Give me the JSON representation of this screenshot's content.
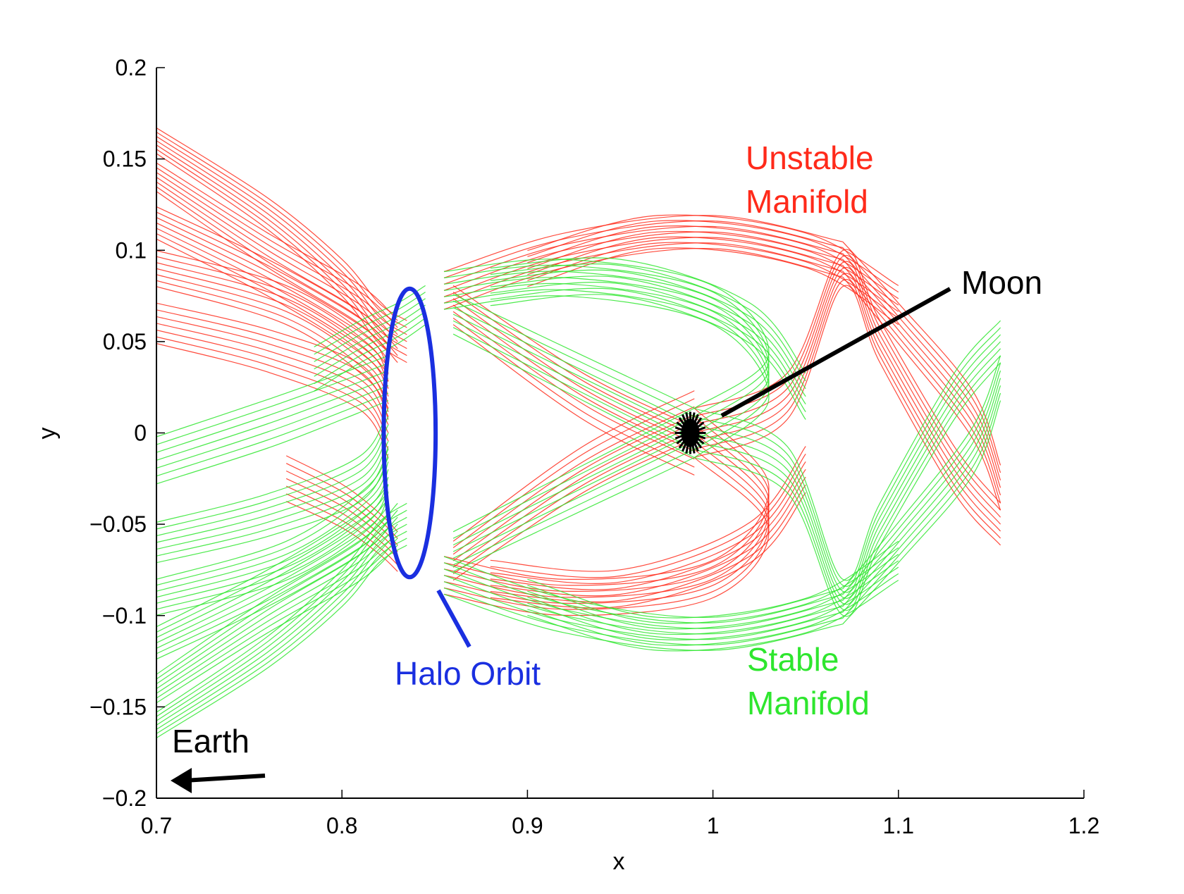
{
  "chart_data": {
    "type": "line",
    "title": "",
    "xlabel": "x",
    "ylabel": "y",
    "xlim": [
      0.7,
      1.2
    ],
    "ylim": [
      -0.2,
      0.2
    ],
    "grid": false,
    "x_ticks": [
      0.7,
      0.8,
      0.9,
      1.0,
      1.1,
      1.2
    ],
    "x_tick_labels": [
      "0.7",
      "0.8",
      "0.9",
      "1",
      "1.1",
      "1.2"
    ],
    "y_ticks": [
      0.2,
      0.15,
      0.1,
      0.05,
      0,
      -0.05,
      -0.1,
      -0.15,
      -0.2
    ],
    "y_tick_labels": [
      "0.2",
      "0.15",
      "0.1",
      "0.05",
      "0",
      "−0.05",
      "−0.1",
      "−0.15",
      "−0.2"
    ],
    "colors": {
      "unstable": "#ff2a1a",
      "stable": "#2ee62e",
      "halo": "#1a2fe0",
      "moon": "#000000",
      "axis": "#000000"
    },
    "halo_orbit": {
      "center_x": 0.8365,
      "center_y": 0.0,
      "half_width_x": 0.014,
      "half_height_y": 0.079
    },
    "moon": {
      "x": 0.9878,
      "y": 0.0
    },
    "series": [
      {
        "key": "unstable",
        "color": "#ff2a1a",
        "curves": [
          [
            [
              0.7,
              0.16
            ],
            [
              0.76,
              0.12
            ],
            [
              0.8,
              0.085
            ],
            [
              0.82,
              0.06
            ],
            [
              0.835,
              0.05
            ]
          ],
          [
            [
              0.7,
              0.14
            ],
            [
              0.76,
              0.1
            ],
            [
              0.81,
              0.07
            ],
            [
              0.83,
              0.05
            ]
          ],
          [
            [
              0.7,
              0.115
            ],
            [
              0.76,
              0.085
            ],
            [
              0.81,
              0.055
            ],
            [
              0.825,
              0.04
            ]
          ],
          [
            [
              0.7,
              0.09
            ],
            [
              0.77,
              0.07
            ],
            [
              0.815,
              0.04
            ],
            [
              0.825,
              0.02
            ]
          ],
          [
            [
              0.7,
              0.06
            ],
            [
              0.76,
              0.045
            ],
            [
              0.81,
              0.025
            ],
            [
              0.825,
              0.0
            ]
          ],
          [
            [
              0.77,
              -0.025
            ],
            [
              0.8,
              -0.04
            ],
            [
              0.82,
              -0.055
            ],
            [
              0.83,
              -0.065
            ]
          ],
          [
            [
              0.855,
              0.078
            ],
            [
              0.92,
              0.1
            ],
            [
              1.0,
              0.11
            ],
            [
              1.07,
              0.095
            ]
          ],
          [
            [
              0.855,
              -0.078
            ],
            [
              0.92,
              -0.09
            ],
            [
              1.0,
              -0.08
            ],
            [
              1.03,
              -0.04
            ],
            [
              0.99,
              0.0
            ]
          ],
          [
            [
              0.86,
              0.07
            ],
            [
              0.93,
              0.02
            ],
            [
              0.99,
              -0.01
            ]
          ],
          [
            [
              0.86,
              -0.07
            ],
            [
              0.93,
              -0.02
            ],
            [
              0.99,
              0.01
            ]
          ],
          [
            [
              0.99,
              0.0
            ],
            [
              1.04,
              0.02
            ],
            [
              1.07,
              0.09
            ],
            [
              1.09,
              0.05
            ],
            [
              1.13,
              -0.02
            ],
            [
              1.155,
              -0.05
            ]
          ],
          [
            [
              1.07,
              0.095
            ],
            [
              1.1,
              0.06
            ],
            [
              1.14,
              0.01
            ],
            [
              1.155,
              -0.03
            ]
          ],
          [
            [
              0.9,
              0.09
            ],
            [
              0.97,
              0.11
            ],
            [
              1.05,
              0.1
            ],
            [
              1.1,
              0.07
            ]
          ],
          [
            [
              0.88,
              -0.08
            ],
            [
              0.95,
              -0.085
            ],
            [
              1.02,
              -0.06
            ],
            [
              1.05,
              -0.02
            ]
          ]
        ]
      },
      {
        "key": "stable",
        "color": "#2ee62e",
        "curves": [
          [
            [
              0.7,
              -0.16
            ],
            [
              0.76,
              -0.12
            ],
            [
              0.8,
              -0.085
            ],
            [
              0.82,
              -0.06
            ],
            [
              0.835,
              -0.05
            ]
          ],
          [
            [
              0.7,
              -0.14
            ],
            [
              0.76,
              -0.1
            ],
            [
              0.81,
              -0.07
            ],
            [
              0.83,
              -0.05
            ]
          ],
          [
            [
              0.7,
              -0.115
            ],
            [
              0.76,
              -0.085
            ],
            [
              0.81,
              -0.055
            ],
            [
              0.825,
              -0.04
            ]
          ],
          [
            [
              0.7,
              -0.09
            ],
            [
              0.77,
              -0.07
            ],
            [
              0.815,
              -0.04
            ],
            [
              0.825,
              -0.02
            ]
          ],
          [
            [
              0.7,
              -0.06
            ],
            [
              0.76,
              -0.045
            ],
            [
              0.81,
              -0.025
            ],
            [
              0.825,
              0.0
            ]
          ],
          [
            [
              0.7,
              -0.015
            ],
            [
              0.76,
              0.005
            ],
            [
              0.8,
              0.02
            ],
            [
              0.825,
              0.03
            ]
          ],
          [
            [
              0.785,
              0.035
            ],
            [
              0.81,
              0.05
            ],
            [
              0.83,
              0.06
            ],
            [
              0.845,
              0.07
            ]
          ],
          [
            [
              0.855,
              -0.078
            ],
            [
              0.92,
              -0.1
            ],
            [
              1.0,
              -0.11
            ],
            [
              1.07,
              -0.095
            ]
          ],
          [
            [
              0.855,
              0.078
            ],
            [
              0.92,
              0.085
            ],
            [
              1.0,
              0.07
            ],
            [
              1.03,
              0.03
            ],
            [
              0.99,
              0.0
            ]
          ],
          [
            [
              0.86,
              0.065
            ],
            [
              0.93,
              0.03
            ],
            [
              0.99,
              0.0
            ]
          ],
          [
            [
              0.86,
              -0.065
            ],
            [
              0.93,
              -0.03
            ],
            [
              0.99,
              0.0
            ]
          ],
          [
            [
              0.99,
              0.0
            ],
            [
              1.04,
              -0.02
            ],
            [
              1.07,
              -0.09
            ],
            [
              1.09,
              -0.05
            ],
            [
              1.13,
              0.02
            ],
            [
              1.155,
              0.05
            ]
          ],
          [
            [
              1.07,
              -0.095
            ],
            [
              1.1,
              -0.06
            ],
            [
              1.14,
              -0.01
            ],
            [
              1.155,
              0.03
            ]
          ],
          [
            [
              0.9,
              -0.09
            ],
            [
              0.97,
              -0.11
            ],
            [
              1.05,
              -0.1
            ],
            [
              1.1,
              -0.07
            ]
          ],
          [
            [
              0.88,
              0.08
            ],
            [
              0.95,
              0.085
            ],
            [
              1.02,
              0.06
            ],
            [
              1.05,
              0.02
            ]
          ]
        ]
      }
    ],
    "annotations": [
      {
        "key": "unstable_label",
        "lines": [
          "Unstable",
          "Manifold"
        ],
        "color": "#ff2a1a"
      },
      {
        "key": "moon_label",
        "lines": [
          "Moon"
        ],
        "color": "#000000"
      },
      {
        "key": "stable_label",
        "lines": [
          "Stable",
          "Manifold"
        ],
        "color": "#2ee62e"
      },
      {
        "key": "halo_label",
        "lines": [
          "Halo Orbit"
        ],
        "color": "#1a2fe0"
      },
      {
        "key": "earth_label",
        "lines": [
          "Earth"
        ],
        "color": "#000000"
      }
    ]
  }
}
